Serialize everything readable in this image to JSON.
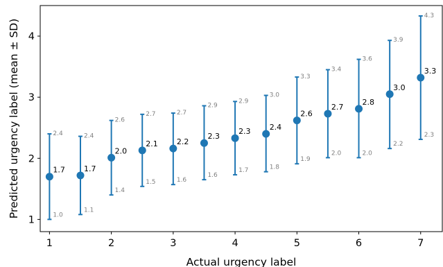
{
  "chart_data": {
    "type": "scatter",
    "title": "",
    "xlabel": "Actual urgency label",
    "ylabel": "Predicted urgency label (mean ± SD)",
    "xlim": [
      0.85,
      7.35
    ],
    "ylim": [
      0.8,
      4.5
    ],
    "xticks": [
      1,
      2,
      3,
      4,
      5,
      6,
      7
    ],
    "yticks": [
      1,
      2,
      3,
      4
    ],
    "grid": false,
    "legend": "none",
    "series": [
      {
        "color": "#1f77b4",
        "points": [
          {
            "x": 1.0,
            "mean": 1.7,
            "low": 1.0,
            "high": 2.4,
            "mean_label": "1.7",
            "low_label": "1.0",
            "high_label": "2.4"
          },
          {
            "x": 1.5,
            "mean": 1.72,
            "low": 1.08,
            "high": 2.36,
            "mean_label": "1.7",
            "low_label": "1.1",
            "high_label": "2.4"
          },
          {
            "x": 2.0,
            "mean": 2.01,
            "low": 1.4,
            "high": 2.62,
            "mean_label": "2.0",
            "low_label": "1.4",
            "high_label": "2.6"
          },
          {
            "x": 2.5,
            "mean": 2.13,
            "low": 1.54,
            "high": 2.72,
            "mean_label": "2.1",
            "low_label": "1.5",
            "high_label": "2.7"
          },
          {
            "x": 3.0,
            "mean": 2.16,
            "low": 1.57,
            "high": 2.74,
            "mean_label": "2.2",
            "low_label": "1.6",
            "high_label": "2.7"
          },
          {
            "x": 3.5,
            "mean": 2.25,
            "low": 1.65,
            "high": 2.86,
            "mean_label": "2.3",
            "low_label": "1.6",
            "high_label": "2.9"
          },
          {
            "x": 4.0,
            "mean": 2.33,
            "low": 1.73,
            "high": 2.93,
            "mean_label": "2.3",
            "low_label": "1.7",
            "high_label": "2.9"
          },
          {
            "x": 4.5,
            "mean": 2.4,
            "low": 1.78,
            "high": 3.03,
            "mean_label": "2.4",
            "low_label": "1.8",
            "high_label": "3.0"
          },
          {
            "x": 5.0,
            "mean": 2.62,
            "low": 1.91,
            "high": 3.33,
            "mean_label": "2.6",
            "low_label": "1.9",
            "high_label": "3.3"
          },
          {
            "x": 5.5,
            "mean": 2.73,
            "low": 2.01,
            "high": 3.45,
            "mean_label": "2.7",
            "low_label": "2.0",
            "high_label": "3.4"
          },
          {
            "x": 6.0,
            "mean": 2.81,
            "low": 2.01,
            "high": 3.62,
            "mean_label": "2.8",
            "low_label": "2.0",
            "high_label": "3.6"
          },
          {
            "x": 6.5,
            "mean": 3.05,
            "low": 2.16,
            "high": 3.93,
            "mean_label": "3.0",
            "low_label": "2.2",
            "high_label": "3.9"
          },
          {
            "x": 7.0,
            "mean": 3.32,
            "low": 2.31,
            "high": 4.33,
            "mean_label": "3.3",
            "low_label": "2.3",
            "high_label": "4.3"
          }
        ]
      }
    ]
  }
}
